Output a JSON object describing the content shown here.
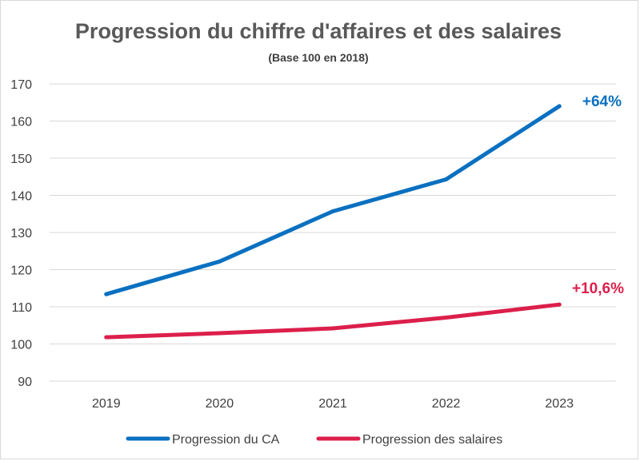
{
  "chart_data": {
    "type": "line",
    "title": "Progression du chiffre d'affaires et des salaires",
    "subtitle": "(Base 100 en 2018)",
    "xlabel": "",
    "ylabel": "",
    "categories": [
      "2019",
      "2020",
      "2021",
      "2022",
      "2023"
    ],
    "ylim": [
      90,
      170
    ],
    "yticks": [
      90,
      100,
      110,
      120,
      130,
      140,
      150,
      160,
      170
    ],
    "grid": true,
    "legend_position": "bottom",
    "series": [
      {
        "name": "Progression du CA",
        "color": "#0a70c0",
        "values": [
          113.4,
          122.2,
          135.7,
          144.3,
          164.0
        ],
        "end_label": "+64%"
      },
      {
        "name": "Progression des salaires",
        "color": "#dc1f4b",
        "values": [
          101.8,
          102.9,
          104.2,
          107.1,
          110.6
        ],
        "end_label": "+10,6%"
      }
    ]
  }
}
